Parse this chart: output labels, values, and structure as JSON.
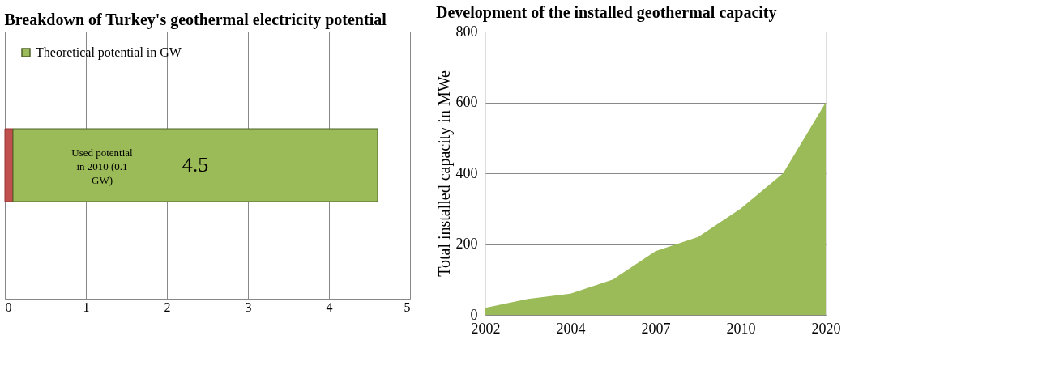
{
  "chart_data": [
    {
      "type": "bar",
      "title": "Breakdown of Turkey's  geothermal electricity potential",
      "orientation": "horizontal",
      "categories": [
        null
      ],
      "series": [
        {
          "color": "#c0504d",
          "values": [
            0.1
          ]
        },
        {
          "name": "Theoretical potential in GW",
          "color": "#9bbb59",
          "values": [
            4.5
          ],
          "value_labels": [
            "4.5"
          ]
        }
      ],
      "stacked": true,
      "annotations": [
        "Used potential in 2010 (0.1 GW)"
      ],
      "xlim": [
        0,
        5
      ],
      "xticks": [
        0,
        1,
        2,
        3,
        4,
        5
      ],
      "grid": "x",
      "legend": "top left",
      "tick_labels": "x"
    },
    {
      "type": "area",
      "title": "Development of the installed geothermal capacity",
      "ylabel": "Total installed capacity in MWe",
      "categories": [
        "2002",
        null,
        "2004",
        null,
        "2007",
        null,
        "2010",
        null,
        "2020"
      ],
      "series": [
        {
          "color": "#9bbb59",
          "values": [
            20,
            45,
            60,
            100,
            180,
            220,
            300,
            400,
            600
          ]
        }
      ],
      "ylim": [
        0,
        800
      ],
      "yticks": [
        0,
        200,
        400,
        600,
        800
      ],
      "grid": "y"
    }
  ]
}
